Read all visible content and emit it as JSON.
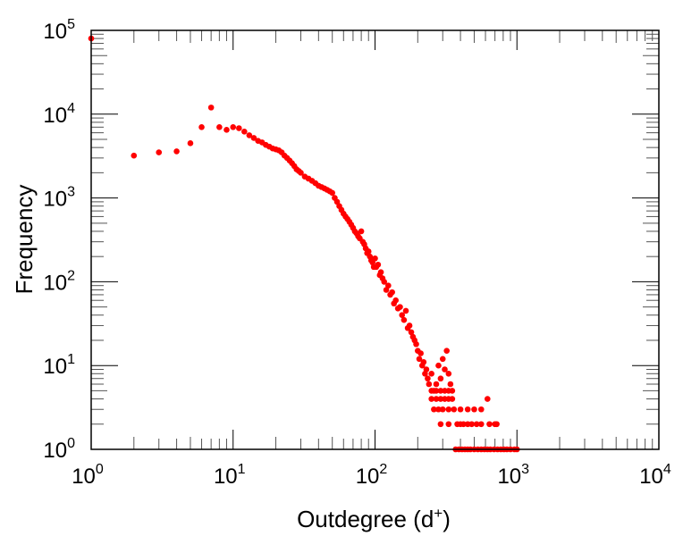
{
  "chart_data": {
    "type": "scatter",
    "title": "",
    "xlabel": "Outdegree (d",
    "xlabel_sup": "+",
    "xlabel_end": ")",
    "ylabel": "Frequency",
    "xscale": "log",
    "yscale": "log",
    "xlim": [
      1,
      10000
    ],
    "ylim": [
      1,
      100000
    ],
    "grid": false,
    "x_ticks": [
      {
        "base": "10",
        "exp": "0",
        "value": 1
      },
      {
        "base": "10",
        "exp": "1",
        "value": 10
      },
      {
        "base": "10",
        "exp": "2",
        "value": 100
      },
      {
        "base": "10",
        "exp": "3",
        "value": 1000
      },
      {
        "base": "10",
        "exp": "4",
        "value": 10000
      }
    ],
    "y_ticks": [
      {
        "base": "10",
        "exp": "0",
        "value": 1
      },
      {
        "base": "10",
        "exp": "1",
        "value": 10
      },
      {
        "base": "10",
        "exp": "2",
        "value": 100
      },
      {
        "base": "10",
        "exp": "3",
        "value": 1000
      },
      {
        "base": "10",
        "exp": "4",
        "value": 10000
      },
      {
        "base": "10",
        "exp": "5",
        "value": 100000
      }
    ],
    "marker_color": "#ff0000",
    "points": [
      [
        1,
        80000
      ],
      [
        2,
        3200
      ],
      [
        3,
        3500
      ],
      [
        4,
        3600
      ],
      [
        5,
        4500
      ],
      [
        6,
        7000
      ],
      [
        7,
        12000
      ],
      [
        8,
        7000
      ],
      [
        9,
        6500
      ],
      [
        10,
        7000
      ],
      [
        11,
        6800
      ],
      [
        12,
        6200
      ],
      [
        13,
        5600
      ],
      [
        14,
        5200
      ],
      [
        15,
        4800
      ],
      [
        16,
        4600
      ],
      [
        17,
        4300
      ],
      [
        18,
        4100
      ],
      [
        19,
        3900
      ],
      [
        20,
        3800
      ],
      [
        21,
        3700
      ],
      [
        22,
        3500
      ],
      [
        23,
        3200
      ],
      [
        24,
        3000
      ],
      [
        25,
        2800
      ],
      [
        26,
        2600
      ],
      [
        27,
        2400
      ],
      [
        28,
        2200
      ],
      [
        29,
        2100
      ],
      [
        30,
        2000
      ],
      [
        32,
        1800
      ],
      [
        34,
        1700
      ],
      [
        36,
        1600
      ],
      [
        38,
        1500
      ],
      [
        40,
        1400
      ],
      [
        42,
        1350
      ],
      [
        44,
        1300
      ],
      [
        46,
        1250
      ],
      [
        48,
        1200
      ],
      [
        50,
        1150
      ],
      [
        52,
        1000
      ],
      [
        54,
        900
      ],
      [
        56,
        800
      ],
      [
        58,
        720
      ],
      [
        60,
        650
      ],
      [
        62,
        600
      ],
      [
        64,
        560
      ],
      [
        66,
        520
      ],
      [
        68,
        480
      ],
      [
        70,
        440
      ],
      [
        72,
        400
      ],
      [
        74,
        380
      ],
      [
        76,
        350
      ],
      [
        78,
        330
      ],
      [
        80,
        400
      ],
      [
        82,
        300
      ],
      [
        84,
        280
      ],
      [
        86,
        250
      ],
      [
        88,
        220
      ],
      [
        90,
        230
      ],
      [
        92,
        200
      ],
      [
        94,
        180
      ],
      [
        96,
        170
      ],
      [
        98,
        150
      ],
      [
        100,
        190
      ],
      [
        102,
        150
      ],
      [
        105,
        160
      ],
      [
        108,
        120
      ],
      [
        110,
        130
      ],
      [
        113,
        110
      ],
      [
        116,
        100
      ],
      [
        120,
        80
      ],
      [
        124,
        90
      ],
      [
        128,
        70
      ],
      [
        132,
        75
      ],
      [
        136,
        55
      ],
      [
        140,
        60
      ],
      [
        145,
        48
      ],
      [
        150,
        50
      ],
      [
        155,
        40
      ],
      [
        160,
        35
      ],
      [
        165,
        45
      ],
      [
        170,
        28
      ],
      [
        175,
        30
      ],
      [
        180,
        25
      ],
      [
        185,
        22
      ],
      [
        190,
        20
      ],
      [
        195,
        18
      ],
      [
        200,
        15
      ],
      [
        205,
        12
      ],
      [
        210,
        14
      ],
      [
        215,
        10
      ],
      [
        220,
        11
      ],
      [
        225,
        8
      ],
      [
        230,
        9
      ],
      [
        235,
        7
      ],
      [
        240,
        6
      ],
      [
        250,
        8
      ],
      [
        260,
        5
      ],
      [
        270,
        6
      ],
      [
        280,
        10
      ],
      [
        290,
        7
      ],
      [
        300,
        12
      ],
      [
        310,
        9
      ],
      [
        320,
        15
      ],
      [
        330,
        8
      ],
      [
        340,
        6
      ],
      [
        250,
        5
      ],
      [
        270,
        5
      ],
      [
        290,
        5
      ],
      [
        310,
        5
      ],
      [
        330,
        5
      ],
      [
        350,
        5
      ],
      [
        250,
        4
      ],
      [
        270,
        4
      ],
      [
        290,
        4
      ],
      [
        310,
        4
      ],
      [
        330,
        4
      ],
      [
        350,
        4
      ],
      [
        620,
        4
      ],
      [
        260,
        3
      ],
      [
        280,
        3
      ],
      [
        300,
        3
      ],
      [
        330,
        3
      ],
      [
        360,
        3
      ],
      [
        400,
        3
      ],
      [
        450,
        3
      ],
      [
        500,
        3
      ],
      [
        560,
        3
      ],
      [
        290,
        2
      ],
      [
        330,
        2
      ],
      [
        380,
        2
      ],
      [
        400,
        2
      ],
      [
        420,
        2
      ],
      [
        450,
        2
      ],
      [
        480,
        2
      ],
      [
        520,
        2
      ],
      [
        560,
        2
      ],
      [
        640,
        2
      ],
      [
        700,
        2
      ],
      [
        720,
        2
      ],
      [
        370,
        1
      ],
      [
        390,
        1
      ],
      [
        410,
        1
      ],
      [
        430,
        1
      ],
      [
        450,
        1
      ],
      [
        470,
        1
      ],
      [
        500,
        1
      ],
      [
        530,
        1
      ],
      [
        560,
        1
      ],
      [
        590,
        1
      ],
      [
        620,
        1
      ],
      [
        650,
        1
      ],
      [
        690,
        1
      ],
      [
        730,
        1
      ],
      [
        770,
        1
      ],
      [
        810,
        1
      ],
      [
        850,
        1
      ],
      [
        900,
        1
      ],
      [
        960,
        1
      ],
      [
        1000,
        1
      ]
    ]
  }
}
